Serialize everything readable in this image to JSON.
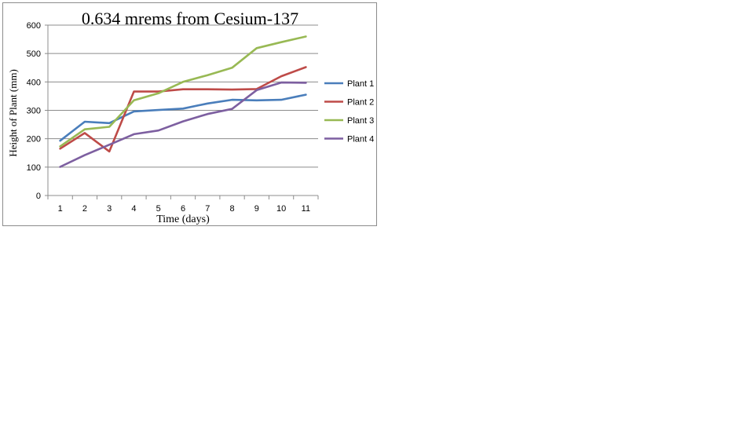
{
  "chart_data": {
    "type": "line",
    "title": "0.634  mrems from Cesium-137",
    "xlabel": "Time (days)",
    "ylabel": "Height of Plant (mm)",
    "categories": [
      "1",
      "2",
      "3",
      "4",
      "5",
      "6",
      "7",
      "8",
      "9",
      "10",
      "11"
    ],
    "ylim": [
      0,
      600
    ],
    "yticks": [
      0,
      100,
      200,
      300,
      400,
      500,
      600
    ],
    "grid": true,
    "legend_position": "right",
    "series": [
      {
        "name": "Plant 1",
        "color": "#4a7ebb",
        "values": [
          193,
          260,
          255,
          296,
          301,
          306,
          324,
          337,
          335,
          337,
          355
        ]
      },
      {
        "name": "Plant 2",
        "color": "#be4b48",
        "values": [
          165,
          220,
          155,
          366,
          366,
          374,
          374,
          373,
          375,
          420,
          452
        ]
      },
      {
        "name": "Plant 3",
        "color": "#98b954",
        "values": [
          173,
          233,
          242,
          335,
          360,
          400,
          424,
          450,
          519,
          540,
          560
        ]
      },
      {
        "name": "Plant 4",
        "color": "#7d5fa0",
        "values": [
          101,
          142,
          179,
          216,
          229,
          261,
          287,
          305,
          371,
          398,
          397
        ]
      }
    ]
  }
}
